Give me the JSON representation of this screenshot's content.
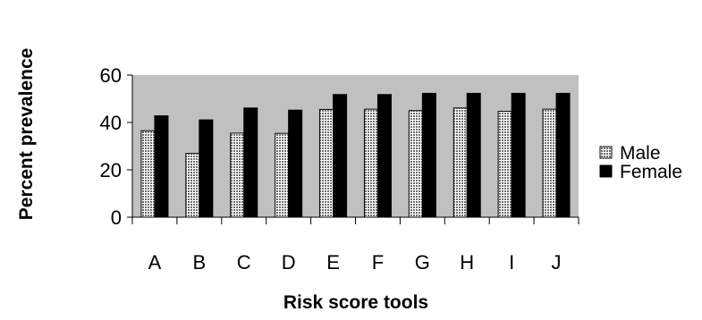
{
  "chart_data": {
    "type": "bar",
    "title": "",
    "xlabel": "Risk score tools",
    "ylabel": "Percent prevalence",
    "categories": [
      "A",
      "B",
      "C",
      "D",
      "E",
      "F",
      "G",
      "H",
      "I",
      "J"
    ],
    "series": [
      {
        "name": "Male",
        "values": [
          36.5,
          26.9,
          35.5,
          35.4,
          45.5,
          45.6,
          45.0,
          46.1,
          44.7,
          45.6
        ],
        "color": "#b0b0b0",
        "pattern": "dotted"
      },
      {
        "name": "Female",
        "values": [
          42.8,
          41.1,
          46.1,
          45.2,
          51.8,
          51.8,
          52.3,
          52.3,
          52.3,
          52.3
        ],
        "color": "#000000",
        "pattern": "solid"
      }
    ],
    "ylim": [
      0,
      60
    ],
    "yticks": [
      0,
      20,
      40,
      60
    ],
    "grid": false,
    "plot_background": "#c0c0c0",
    "legend_position": "right"
  }
}
